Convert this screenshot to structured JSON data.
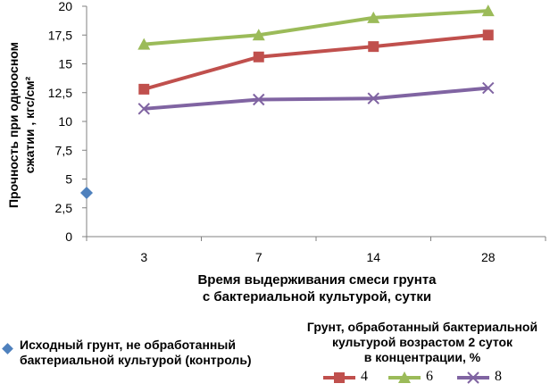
{
  "chart_data": {
    "type": "line",
    "title": "",
    "xlabel": "Время выдерживания смеси грунта с бактериальной культурой, сутки",
    "xlabel_lines": [
      "Время выдерживания смеси грунта",
      "с бактериальной культурой, сутки"
    ],
    "ylabel": "Прочность при одноосном сжатии , кгс/см²",
    "ylabel_lines": [
      "Прочность при одноосном",
      "сжатии , кгс/см²"
    ],
    "categories": [
      "3",
      "7",
      "14",
      "28"
    ],
    "ylim": [
      0,
      20
    ],
    "yticks": [
      "0",
      "2,5",
      "5",
      "7,5",
      "10",
      "12,5",
      "15",
      "17,5",
      "20"
    ],
    "grid": false,
    "control": {
      "name": "Исходный грунт, не обработанный бактериальной культурой (контроль)",
      "label_lines": [
        "Исходный грунт, не обработанный",
        "бактериальной культурой (контроль)"
      ],
      "value": 3.8,
      "color": "#4f81bd",
      "marker": "diamond"
    },
    "series_legend_title_lines": [
      "Грунт, обработанный бактериальной",
      "культурой возрастом 2 суток",
      "в концентрации, %"
    ],
    "series": [
      {
        "name": "4",
        "values": [
          12.8,
          15.6,
          16.5,
          17.5
        ],
        "color": "#c0504d",
        "marker": "square"
      },
      {
        "name": "6",
        "values": [
          16.7,
          17.5,
          19.0,
          19.6
        ],
        "color": "#9bbb59",
        "marker": "triangle"
      },
      {
        "name": "8",
        "values": [
          11.1,
          11.9,
          12.0,
          12.9
        ],
        "color": "#8064a2",
        "marker": "x"
      }
    ]
  }
}
